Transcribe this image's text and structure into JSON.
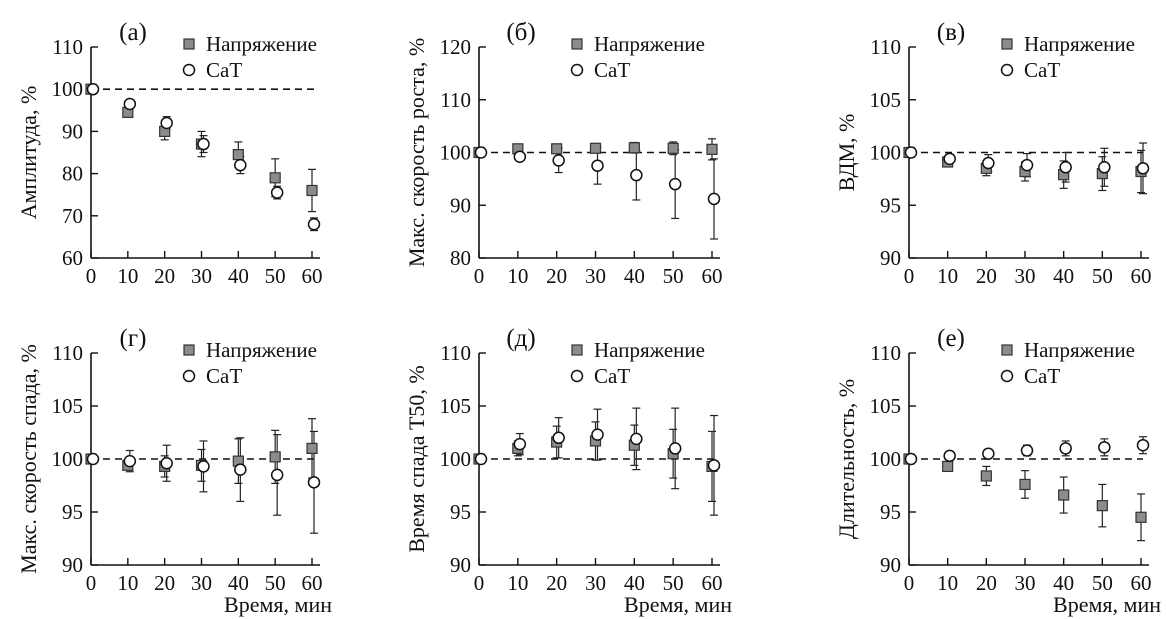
{
  "chart_data": [
    {
      "type": "scatter",
      "panel_label": "(а)",
      "ylabel": "Амплитуда, %",
      "xlabel": "",
      "xlim": [
        0,
        60
      ],
      "ylim": [
        60,
        110
      ],
      "xticks": [
        0,
        10,
        20,
        30,
        40,
        50,
        60
      ],
      "yticks": [
        60,
        70,
        80,
        90,
        100,
        110
      ],
      "reference_line": 100,
      "legend": [
        "Напряжение",
        "CaT"
      ],
      "series": [
        {
          "name": "Напряжение",
          "marker": "square",
          "x": [
            0,
            10,
            20,
            30,
            40,
            50,
            60
          ],
          "y": [
            100,
            94.5,
            90,
            87,
            84.5,
            79,
            76
          ],
          "err": [
            0,
            0.5,
            2,
            3,
            3,
            4.5,
            5
          ]
        },
        {
          "name": "CaT",
          "marker": "circle",
          "x": [
            0,
            10,
            20,
            30,
            40,
            50,
            60
          ],
          "y": [
            100,
            96.5,
            92,
            87,
            82,
            75.5,
            68
          ],
          "err": [
            0,
            0.5,
            1.5,
            2,
            2,
            1.5,
            1.5
          ]
        }
      ]
    },
    {
      "type": "scatter",
      "panel_label": "(б)",
      "ylabel": "Макс. скорость роста, %",
      "xlabel": "",
      "xlim": [
        0,
        60
      ],
      "ylim": [
        80,
        120
      ],
      "xticks": [
        0,
        10,
        20,
        30,
        40,
        50,
        60
      ],
      "yticks": [
        80,
        90,
        100,
        110,
        120
      ],
      "reference_line": 100,
      "legend": [
        "Напряжение",
        "CaT"
      ],
      "series": [
        {
          "name": "Напряжение",
          "marker": "square",
          "x": [
            0,
            10,
            20,
            30,
            40,
            50,
            60
          ],
          "y": [
            100,
            100.7,
            100.7,
            100.8,
            100.9,
            100.8,
            100.6
          ],
          "err": [
            0,
            0.5,
            0.6,
            0.6,
            1,
            1.2,
            2
          ]
        },
        {
          "name": "CaT",
          "marker": "circle",
          "x": [
            0,
            10,
            20,
            30,
            40,
            50,
            60
          ],
          "y": [
            100,
            99.2,
            98.5,
            97.5,
            95.7,
            94,
            91.2
          ],
          "err": [
            0,
            0.6,
            2.3,
            3.5,
            4.7,
            6.5,
            7.6
          ]
        }
      ]
    },
    {
      "type": "scatter",
      "panel_label": "(в)",
      "ylabel": "ВДМ, %",
      "xlabel": "",
      "xlim": [
        0,
        60
      ],
      "ylim": [
        90,
        110
      ],
      "xticks": [
        0,
        10,
        20,
        30,
        40,
        50,
        60
      ],
      "yticks": [
        90,
        95,
        100,
        105,
        110
      ],
      "reference_line": 100,
      "legend": [
        "Напряжение",
        "CaT"
      ],
      "series": [
        {
          "name": "Напряжение",
          "marker": "square",
          "x": [
            0,
            10,
            20,
            30,
            40,
            50,
            60
          ],
          "y": [
            100,
            99.1,
            98.5,
            98.2,
            97.9,
            98,
            98.2
          ],
          "err": [
            0,
            0.3,
            0.7,
            0.9,
            1.3,
            1.6,
            2
          ]
        },
        {
          "name": "CaT",
          "marker": "circle",
          "x": [
            0,
            10,
            20,
            30,
            40,
            50,
            60
          ],
          "y": [
            100,
            99.4,
            99,
            98.8,
            98.6,
            98.6,
            98.5
          ],
          "err": [
            0,
            0.4,
            0.8,
            1.1,
            1.4,
            1.8,
            2.4
          ]
        }
      ]
    },
    {
      "type": "scatter",
      "panel_label": "(г)",
      "ylabel": "Макс. скорость спада, %",
      "xlabel": "",
      "xlim": [
        0,
        60
      ],
      "ylim": [
        90,
        110
      ],
      "xticks": [
        0,
        10,
        20,
        30,
        40,
        50,
        60
      ],
      "yticks": [
        90,
        95,
        100,
        105,
        110
      ],
      "reference_line": 100,
      "legend": [
        "Напряжение",
        "CaT"
      ],
      "series": [
        {
          "name": "Напряжение",
          "marker": "square",
          "x": [
            0,
            10,
            20,
            30,
            40,
            50,
            60
          ],
          "y": [
            100,
            99.4,
            99.3,
            99.4,
            99.8,
            100.2,
            101
          ],
          "err": [
            0,
            0.4,
            1,
            1.5,
            2.1,
            2.5,
            2.8
          ]
        },
        {
          "name": "CaT",
          "marker": "circle",
          "x": [
            0,
            10,
            20,
            30,
            40,
            50,
            60
          ],
          "y": [
            100,
            99.8,
            99.6,
            99.3,
            99,
            98.5,
            97.8
          ],
          "err": [
            0,
            1,
            1.7,
            2.4,
            3,
            3.8,
            4.8
          ]
        }
      ]
    },
    {
      "type": "scatter",
      "panel_label": "(д)",
      "ylabel": "Время спада T50, %",
      "xlabel": "",
      "xlim": [
        0,
        60
      ],
      "ylim": [
        90,
        110
      ],
      "xticks": [
        0,
        10,
        20,
        30,
        40,
        50,
        60
      ],
      "yticks": [
        90,
        95,
        100,
        105,
        110
      ],
      "reference_line": 100,
      "legend": [
        "Напряжение",
        "CaT"
      ],
      "series": [
        {
          "name": "Напряжение",
          "marker": "square",
          "x": [
            0,
            10,
            20,
            30,
            40,
            50,
            60
          ],
          "y": [
            100,
            101,
            101.6,
            101.7,
            101.3,
            100.5,
            99.3
          ],
          "err": [
            0,
            0.7,
            1.5,
            1.8,
            1.9,
            2.3,
            3.3
          ]
        },
        {
          "name": "CaT",
          "marker": "circle",
          "x": [
            0,
            10,
            20,
            30,
            40,
            50,
            60
          ],
          "y": [
            100,
            101.4,
            102,
            102.3,
            101.9,
            101,
            99.4
          ],
          "err": [
            0,
            1,
            1.9,
            2.4,
            2.9,
            3.8,
            4.7
          ]
        }
      ]
    },
    {
      "type": "scatter",
      "panel_label": "(е)",
      "ylabel": "Длительность, %",
      "xlabel": "Время, мин",
      "xlim": [
        0,
        60
      ],
      "ylim": [
        90,
        110
      ],
      "xticks": [
        0,
        10,
        20,
        30,
        40,
        50,
        60
      ],
      "yticks": [
        90,
        95,
        100,
        105,
        110
      ],
      "reference_line": 100,
      "legend": [
        "Напряжение",
        "CaT"
      ],
      "series": [
        {
          "name": "Напряжение",
          "marker": "square",
          "x": [
            0,
            10,
            20,
            30,
            40,
            50,
            60
          ],
          "y": [
            100,
            99.3,
            98.4,
            97.6,
            96.6,
            95.6,
            94.5
          ],
          "err": [
            0,
            0.4,
            0.9,
            1.3,
            1.7,
            2,
            2.2
          ]
        },
        {
          "name": "CaT",
          "marker": "circle",
          "x": [
            0,
            10,
            20,
            30,
            40,
            50,
            60
          ],
          "y": [
            100,
            100.3,
            100.5,
            100.8,
            101,
            101.1,
            101.3
          ],
          "err": [
            0,
            0.4,
            0.4,
            0.5,
            0.7,
            0.8,
            0.8
          ]
        }
      ]
    }
  ],
  "xlabel_bottom": "Время, мин"
}
